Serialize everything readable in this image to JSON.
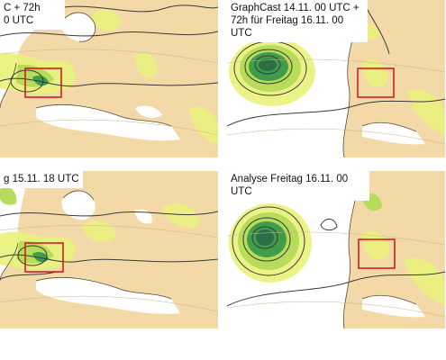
{
  "panels": [
    {
      "id": "top-left",
      "caption": "C + 72h\n0 UTC"
    },
    {
      "id": "top-right",
      "caption": "GraphCast 14.11. 00 UTC +\n72h für Freitag 16.11. 00\nUTC"
    },
    {
      "id": "bottom-left",
      "caption": "g 15.11. 18 UTC"
    },
    {
      "id": "bottom-right",
      "caption": "Analyse Freitag 16.11. 00 UTC"
    }
  ],
  "colors": {
    "land": "#f3d9a8",
    "sea": "#ffffff",
    "precip_light": "#e9f27a",
    "precip_mid": "#b6dc5a",
    "precip_heavy": "#3f9c4a",
    "precip_core": "#2d6f45",
    "isobar": "#3a3a3a",
    "coast": "#5a4a33",
    "highlight_box": "#d11e1e"
  }
}
